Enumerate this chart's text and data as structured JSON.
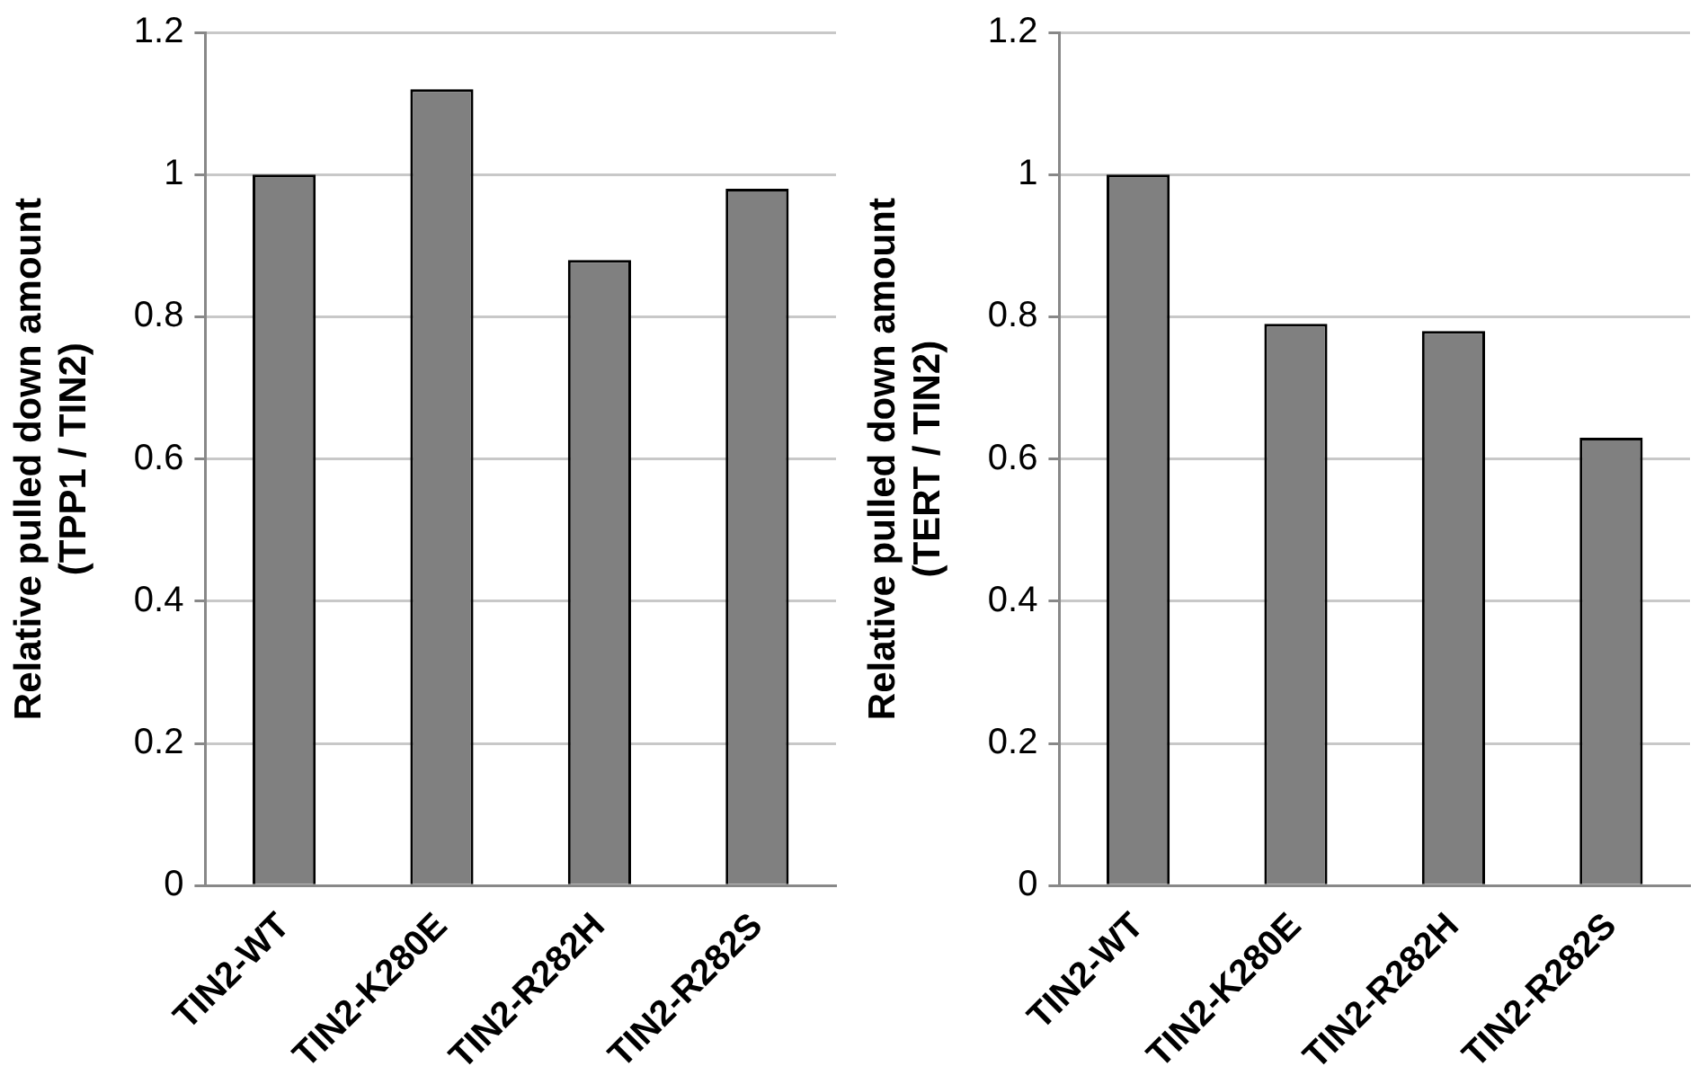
{
  "chart_data": [
    {
      "type": "bar",
      "ylabel": "Relative pulled down amount\n(TPP1 / TIN2)",
      "categories": [
        "TIN2-WT",
        "TIN2-K280E",
        "TIN2-R282H",
        "TIN2-R282S"
      ],
      "values": [
        1,
        1.12,
        0.88,
        0.98
      ],
      "color": "#808080",
      "ylim": [
        0,
        1.2
      ],
      "yticks": [
        0,
        0.2,
        0.4,
        0.6,
        0.8,
        1,
        1.2
      ],
      "grid": "y"
    },
    {
      "type": "bar",
      "ylabel": "Relative pulled down amount\n(TERT / TIN2)",
      "categories": [
        "TIN2-WT",
        "TIN2-K280E",
        "TIN2-R282H",
        "TIN2-R282S"
      ],
      "values": [
        1,
        0.79,
        0.78,
        0.63
      ],
      "color": "#808080",
      "ylim": [
        0,
        1.2
      ],
      "yticks": [
        0,
        0.2,
        0.4,
        0.6,
        0.8,
        1,
        1.2
      ],
      "grid": "y"
    }
  ]
}
